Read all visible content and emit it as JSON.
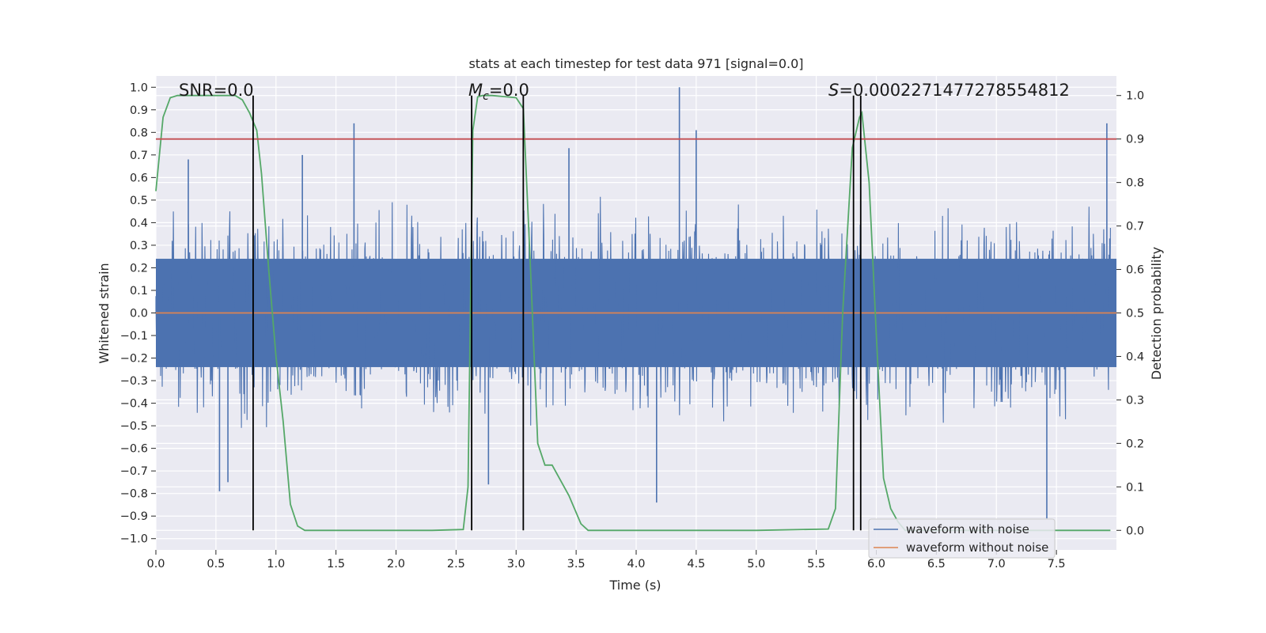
{
  "chart_data": {
    "type": "line",
    "title": "stats at each timestep for test data 971 [signal=0.0]",
    "xlabel": "Time (s)",
    "ylabel": "Whitened strain",
    "y2label": "Detection probability",
    "xlim": [
      0.0,
      8.0
    ],
    "ylim": [
      -1.05,
      1.05
    ],
    "y2lim": [
      -0.045,
      1.045
    ],
    "xticks": [
      "0.0",
      "0.5",
      "1.0",
      "1.5",
      "2.0",
      "2.5",
      "3.0",
      "3.5",
      "4.0",
      "4.5",
      "5.0",
      "5.5",
      "6.0",
      "6.5",
      "7.0",
      "7.5"
    ],
    "yticks": [
      "1.0",
      "0.9",
      "0.8",
      "0.7",
      "0.6",
      "0.5",
      "0.4",
      "0.3",
      "0.2",
      "0.1",
      "0.0",
      "-0.1",
      "-0.2",
      "-0.3",
      "-0.4",
      "-0.5",
      "-0.6",
      "-0.7",
      "-0.8",
      "-0.9",
      "-1.0"
    ],
    "y2ticks": [
      "1.0",
      "0.9",
      "0.8",
      "0.7",
      "0.6",
      "0.5",
      "0.4",
      "0.3",
      "0.2",
      "0.1",
      "0.0"
    ],
    "grid": true,
    "legend_position": "bottom-right",
    "series": [
      {
        "name": "waveform with noise",
        "axis": "left",
        "color": "#4c72b0",
        "kind": "dense-noise",
        "core_band": [
          -0.24,
          0.24
        ],
        "typical_peak": [
          -0.55,
          0.55
        ],
        "spikes": [
          {
            "x": 0.27,
            "y": 0.68
          },
          {
            "x": 0.53,
            "y": -0.79
          },
          {
            "x": 0.6,
            "y": -0.75
          },
          {
            "x": 1.65,
            "y": 0.84
          },
          {
            "x": 4.17,
            "y": -0.84
          },
          {
            "x": 4.36,
            "y": 1.0
          },
          {
            "x": 4.5,
            "y": 0.81
          },
          {
            "x": 7.42,
            "y": -0.91
          },
          {
            "x": 7.92,
            "y": 0.84
          },
          {
            "x": 1.22,
            "y": 0.7
          },
          {
            "x": 3.44,
            "y": 0.73
          },
          {
            "x": 2.77,
            "y": -0.76
          }
        ]
      },
      {
        "name": "waveform without noise",
        "axis": "left",
        "color": "#dd8452",
        "x": [
          0.0,
          8.0
        ],
        "y": [
          0.0,
          0.0
        ]
      },
      {
        "name": "",
        "axis": "right",
        "color": "#55a868",
        "x": [
          0.0,
          0.06,
          0.12,
          0.18,
          0.24,
          0.36,
          0.48,
          0.6,
          0.66,
          0.72,
          0.78,
          0.84,
          0.88,
          0.94,
          1.0,
          1.06,
          1.12,
          1.18,
          1.24,
          1.3,
          1.8,
          2.3,
          2.56,
          2.6,
          2.64,
          2.68,
          2.72,
          2.8,
          3.0,
          3.06,
          3.12,
          3.18,
          3.24,
          3.3,
          3.36,
          3.44,
          3.54,
          3.6,
          3.66,
          4.0,
          5.0,
          5.6,
          5.66,
          5.72,
          5.8,
          5.86,
          5.88,
          5.94,
          6.0,
          6.06,
          6.12,
          6.18,
          6.24,
          6.3,
          7.0,
          7.5,
          7.95
        ],
        "y": [
          0.78,
          0.95,
          0.995,
          1.0,
          1.0,
          1.0,
          1.0,
          1.0,
          1.0,
          0.99,
          0.96,
          0.92,
          0.82,
          0.6,
          0.4,
          0.25,
          0.06,
          0.01,
          0.0,
          0.0,
          0.0,
          0.0,
          0.002,
          0.1,
          0.92,
          0.997,
          1.0,
          1.0,
          0.995,
          0.97,
          0.6,
          0.2,
          0.15,
          0.15,
          0.12,
          0.08,
          0.015,
          0.0,
          0.0,
          0.0,
          0.0,
          0.003,
          0.05,
          0.5,
          0.88,
          0.95,
          0.96,
          0.8,
          0.45,
          0.12,
          0.05,
          0.02,
          0.0,
          0.0,
          0.0,
          0.0,
          0.0
        ]
      },
      {
        "name": "",
        "axis": "right",
        "color": "#c44e52",
        "x": [
          0.0,
          8.0
        ],
        "y": [
          0.9,
          0.9
        ]
      }
    ],
    "vlines": [
      0.81,
      2.63,
      3.06,
      5.81,
      5.87
    ],
    "annotations": [
      {
        "text": "SNR=0.0"
      },
      {
        "text_italic": "M",
        "sub": "c",
        "text": "=0.0"
      },
      {
        "text_italic": "S",
        "text": "=0.000227147727855481​2"
      }
    ]
  }
}
